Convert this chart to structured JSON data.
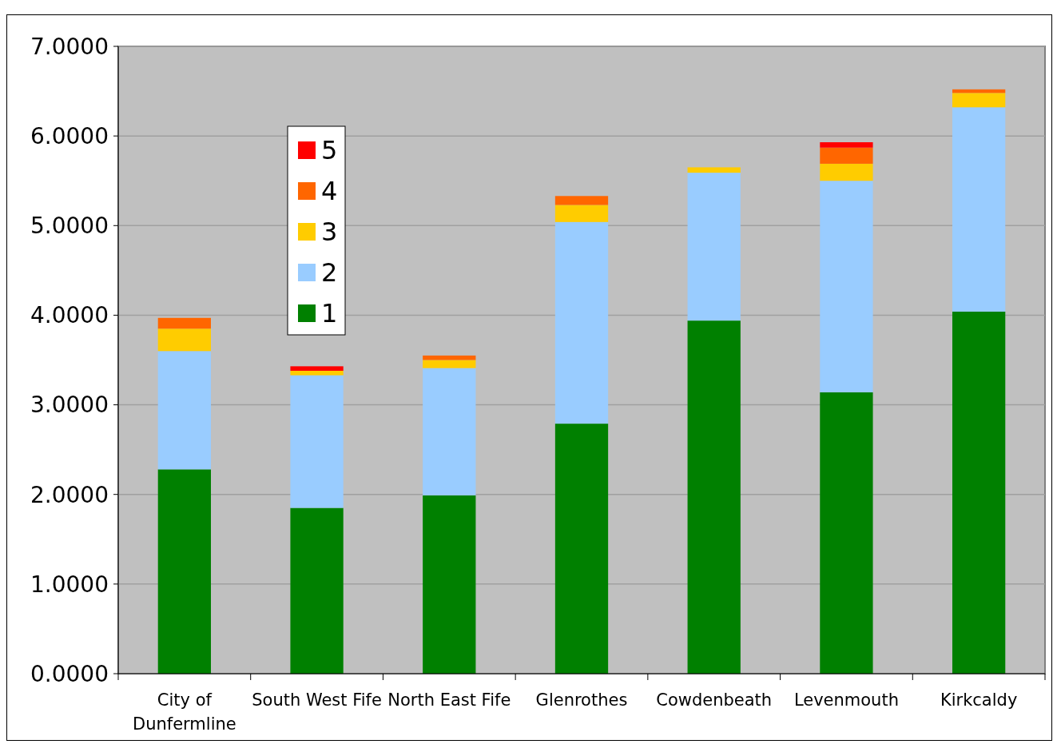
{
  "chart_data": {
    "type": "bar",
    "stacked": true,
    "categories": [
      "City of Dunfermline",
      "South West Fife",
      "North East Fife",
      "Glenrothes",
      "Cowdenbeath",
      "Levenmouth",
      "Kirkcaldy"
    ],
    "series": [
      {
        "name": "1",
        "color": "#008000",
        "values": [
          2.28,
          1.85,
          1.99,
          2.79,
          3.94,
          3.14,
          4.04
        ]
      },
      {
        "name": "2",
        "color": "#99ccff",
        "values": [
          1.32,
          1.48,
          1.42,
          2.25,
          1.65,
          2.36,
          2.28
        ]
      },
      {
        "name": "3",
        "color": "#ffcc00",
        "values": [
          0.25,
          0.05,
          0.09,
          0.19,
          0.06,
          0.19,
          0.16
        ]
      },
      {
        "name": "4",
        "color": "#ff6600",
        "values": [
          0.12,
          0,
          0.05,
          0.1,
          0,
          0.18,
          0.04
        ]
      },
      {
        "name": "5",
        "color": "#ff0000",
        "values": [
          0,
          0.05,
          0,
          0,
          0,
          0.06,
          0
        ]
      }
    ],
    "ylim": [
      0,
      7
    ],
    "yticks": [
      {
        "value": 0,
        "label": "0.0000"
      },
      {
        "value": 1,
        "label": "1.0000"
      },
      {
        "value": 2,
        "label": "2.0000"
      },
      {
        "value": 3,
        "label": "3.0000"
      },
      {
        "value": 4,
        "label": "4.0000"
      },
      {
        "value": 5,
        "label": "5.0000"
      },
      {
        "value": 6,
        "label": "6.0000"
      },
      {
        "value": 7,
        "label": "7.0000"
      }
    ],
    "grid": "y",
    "legend": "top left"
  }
}
